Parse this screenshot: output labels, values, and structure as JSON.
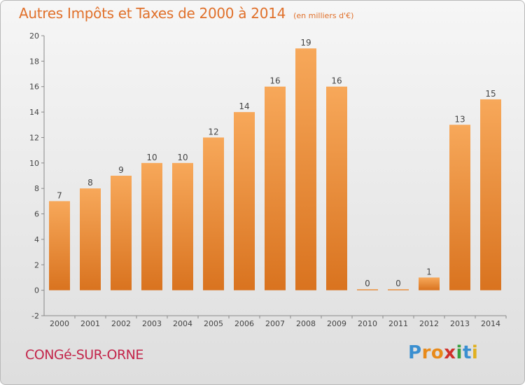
{
  "header": {
    "title": "Autres Impôts et Taxes de 2000 à 2014",
    "unit": "(en milliers d'€)"
  },
  "footer": {
    "commune": "CONGé-SUR-ORNE",
    "logo_letters": [
      "P",
      "r",
      "o",
      "x",
      "i",
      "t",
      "i"
    ],
    "logo_colors": [
      "#3a8fd0",
      "#e88a1a",
      "#e88a1a",
      "#d0302a",
      "#3aa040",
      "#3a8fd0",
      "#e0b020"
    ]
  },
  "chart_data": {
    "type": "bar",
    "title": "Autres Impôts et Taxes de 2000 à 2014",
    "xlabel": "",
    "ylabel": "",
    "categories": [
      "2000",
      "2001",
      "2002",
      "2003",
      "2004",
      "2005",
      "2006",
      "2007",
      "2008",
      "2009",
      "2010",
      "2011",
      "2012",
      "2013",
      "2014"
    ],
    "values": [
      7,
      8,
      9,
      10,
      10,
      12,
      14,
      16,
      19,
      16,
      0,
      0,
      1,
      13,
      15
    ],
    "ylim": [
      -2,
      20
    ],
    "yticks": [
      -2,
      0,
      2,
      4,
      6,
      8,
      10,
      12,
      14,
      16,
      18,
      20
    ],
    "grid": false,
    "bar_color_light": "#f7a85a",
    "bar_color_dark": "#d9731f"
  }
}
